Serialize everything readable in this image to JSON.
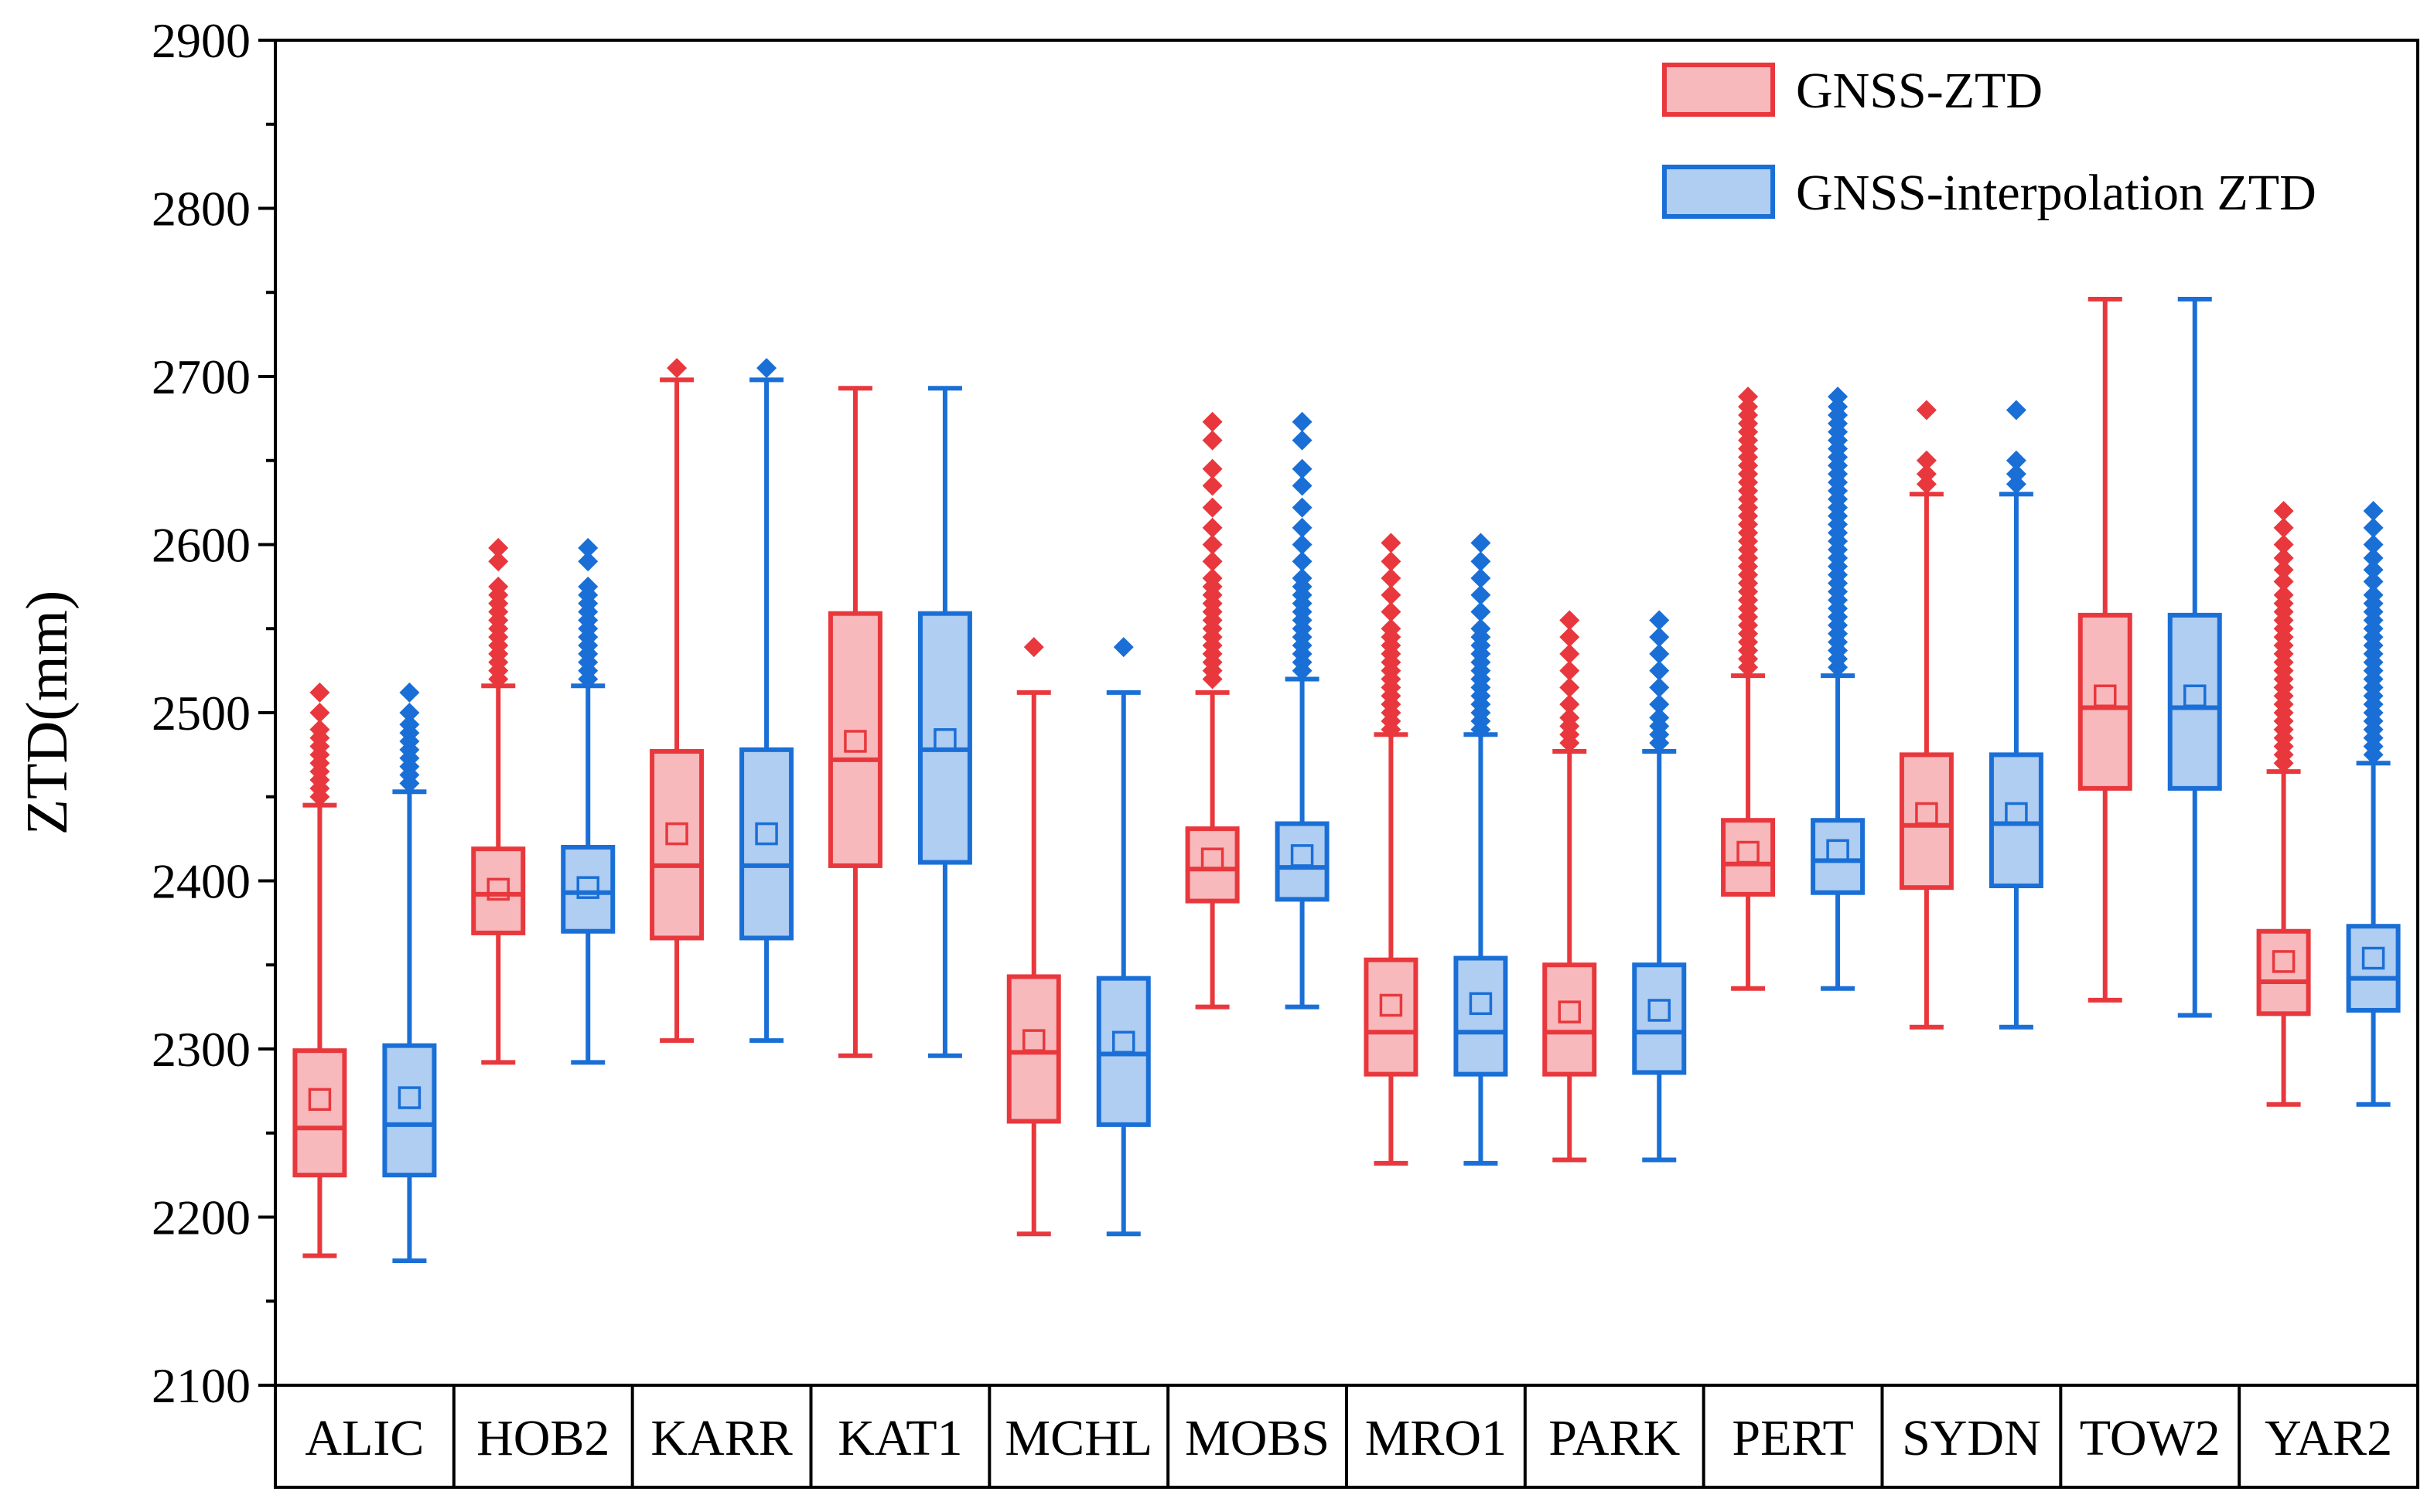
{
  "chart_data": {
    "type": "boxplot",
    "title": "",
    "xlabel": "",
    "ylabel": "ZTD(mm)",
    "ylim": [
      2100,
      2900
    ],
    "yticks": [
      2100,
      2200,
      2300,
      2400,
      2500,
      2600,
      2700,
      2800,
      2900
    ],
    "legend_position": "top-right",
    "categories": [
      "ALIC",
      "HOB2",
      "KARR",
      "KAT1",
      "MCHL",
      "MOBS",
      "MRO1",
      "PARK",
      "PERT",
      "SYDN",
      "TOW2",
      "YAR2"
    ],
    "series": [
      {
        "name": "GNSS-ZTD",
        "color": "#e8383d",
        "fill": "#f7b9bc",
        "boxes": [
          {
            "min": 2177,
            "q1": 2225,
            "median": 2253,
            "q3": 2299,
            "max": 2445,
            "mean": 2270,
            "outliers": [
              2450,
              2455,
              2460,
              2465,
              2470,
              2475,
              2480,
              2485,
              2490,
              2500,
              2512
            ]
          },
          {
            "min": 2292,
            "q1": 2369,
            "median": 2392,
            "q3": 2419,
            "max": 2516,
            "mean": 2395,
            "outliers": [
              2520,
              2525,
              2530,
              2535,
              2540,
              2545,
              2550,
              2555,
              2560,
              2565,
              2570,
              2575,
              2590,
              2598
            ]
          },
          {
            "min": 2305,
            "q1": 2366,
            "median": 2409,
            "q3": 2477,
            "max": 2698,
            "mean": 2428,
            "outliers": [
              2705
            ]
          },
          {
            "min": 2296,
            "q1": 2409,
            "median": 2472,
            "q3": 2559,
            "max": 2693,
            "mean": 2483,
            "outliers": []
          },
          {
            "min": 2190,
            "q1": 2257,
            "median": 2298,
            "q3": 2343,
            "max": 2512,
            "mean": 2305,
            "outliers": [
              2539
            ]
          },
          {
            "min": 2325,
            "q1": 2388,
            "median": 2407,
            "q3": 2431,
            "max": 2512,
            "mean": 2413,
            "outliers": [
              2520,
              2525,
              2530,
              2535,
              2540,
              2545,
              2550,
              2555,
              2560,
              2565,
              2570,
              2575,
              2580,
              2590,
              2600,
              2610,
              2622,
              2635,
              2645,
              2662,
              2673
            ]
          },
          {
            "min": 2232,
            "q1": 2285,
            "median": 2310,
            "q3": 2353,
            "max": 2487,
            "mean": 2326,
            "outliers": [
              2490,
              2495,
              2500,
              2505,
              2510,
              2515,
              2520,
              2525,
              2530,
              2535,
              2540,
              2545,
              2550,
              2560,
              2570,
              2580,
              2590,
              2601
            ]
          },
          {
            "min": 2234,
            "q1": 2285,
            "median": 2310,
            "q3": 2350,
            "max": 2477,
            "mean": 2322,
            "outliers": [
              2482,
              2487,
              2492,
              2497,
              2505,
              2515,
              2525,
              2535,
              2545,
              2555
            ]
          },
          {
            "min": 2336,
            "q1": 2392,
            "median": 2410,
            "q3": 2436,
            "max": 2522,
            "mean": 2417,
            "outliers": [
              2527,
              2532,
              2537,
              2542,
              2547,
              2552,
              2557,
              2562,
              2567,
              2572,
              2577,
              2582,
              2587,
              2592,
              2597,
              2602,
              2607,
              2612,
              2617,
              2622,
              2627,
              2632,
              2637,
              2642,
              2647,
              2652,
              2657,
              2662,
              2667,
              2672,
              2677,
              2682,
              2688
            ]
          },
          {
            "min": 2313,
            "q1": 2396,
            "median": 2433,
            "q3": 2475,
            "max": 2630,
            "mean": 2440,
            "outliers": [
              2636,
              2642,
              2650,
              2680
            ]
          },
          {
            "min": 2329,
            "q1": 2455,
            "median": 2503,
            "q3": 2558,
            "max": 2746,
            "mean": 2510,
            "outliers": []
          },
          {
            "min": 2267,
            "q1": 2321,
            "median": 2340,
            "q3": 2370,
            "max": 2465,
            "mean": 2352,
            "outliers": [
              2470,
              2475,
              2480,
              2485,
              2490,
              2495,
              2500,
              2505,
              2510,
              2515,
              2520,
              2525,
              2530,
              2535,
              2540,
              2545,
              2550,
              2555,
              2560,
              2565,
              2570,
              2578,
              2585,
              2592,
              2600,
              2610,
              2620
            ]
          }
        ]
      },
      {
        "name": "GNSS-interpolation ZTD",
        "color": "#1a6fd6",
        "fill": "#b0cdf2",
        "boxes": [
          {
            "min": 2174,
            "q1": 2225,
            "median": 2255,
            "q3": 2302,
            "max": 2453,
            "mean": 2271,
            "outliers": [
              2458,
              2463,
              2468,
              2473,
              2478,
              2483,
              2488,
              2493,
              2500,
              2512
            ]
          },
          {
            "min": 2292,
            "q1": 2370,
            "median": 2393,
            "q3": 2420,
            "max": 2516,
            "mean": 2396,
            "outliers": [
              2520,
              2525,
              2530,
              2535,
              2540,
              2545,
              2550,
              2555,
              2560,
              2565,
              2570,
              2575,
              2590,
              2598
            ]
          },
          {
            "min": 2305,
            "q1": 2366,
            "median": 2409,
            "q3": 2478,
            "max": 2698,
            "mean": 2428,
            "outliers": [
              2705
            ]
          },
          {
            "min": 2296,
            "q1": 2411,
            "median": 2478,
            "q3": 2559,
            "max": 2693,
            "mean": 2484,
            "outliers": []
          },
          {
            "min": 2190,
            "q1": 2255,
            "median": 2297,
            "q3": 2342,
            "max": 2512,
            "mean": 2304,
            "outliers": [
              2539
            ]
          },
          {
            "min": 2325,
            "q1": 2389,
            "median": 2408,
            "q3": 2434,
            "max": 2520,
            "mean": 2415,
            "outliers": [
              2525,
              2530,
              2535,
              2540,
              2545,
              2550,
              2555,
              2560,
              2565,
              2570,
              2575,
              2580,
              2590,
              2600,
              2610,
              2622,
              2635,
              2645,
              2662,
              2673
            ]
          },
          {
            "min": 2232,
            "q1": 2285,
            "median": 2310,
            "q3": 2354,
            "max": 2487,
            "mean": 2327,
            "outliers": [
              2490,
              2495,
              2500,
              2505,
              2510,
              2515,
              2520,
              2525,
              2530,
              2535,
              2540,
              2545,
              2550,
              2560,
              2570,
              2580,
              2590,
              2601
            ]
          },
          {
            "min": 2234,
            "q1": 2286,
            "median": 2310,
            "q3": 2350,
            "max": 2477,
            "mean": 2323,
            "outliers": [
              2482,
              2487,
              2492,
              2497,
              2505,
              2515,
              2525,
              2535,
              2545,
              2555
            ]
          },
          {
            "min": 2336,
            "q1": 2393,
            "median": 2412,
            "q3": 2436,
            "max": 2522,
            "mean": 2418,
            "outliers": [
              2527,
              2532,
              2537,
              2542,
              2547,
              2552,
              2557,
              2562,
              2567,
              2572,
              2577,
              2582,
              2587,
              2592,
              2597,
              2602,
              2607,
              2612,
              2617,
              2622,
              2627,
              2632,
              2637,
              2642,
              2647,
              2652,
              2657,
              2662,
              2667,
              2672,
              2677,
              2682,
              2688
            ]
          },
          {
            "min": 2313,
            "q1": 2397,
            "median": 2434,
            "q3": 2475,
            "max": 2630,
            "mean": 2440,
            "outliers": [
              2636,
              2642,
              2650,
              2680
            ]
          },
          {
            "min": 2320,
            "q1": 2455,
            "median": 2503,
            "q3": 2558,
            "max": 2746,
            "mean": 2510,
            "outliers": []
          },
          {
            "min": 2267,
            "q1": 2323,
            "median": 2342,
            "q3": 2373,
            "max": 2470,
            "mean": 2354,
            "outliers": [
              2475,
              2480,
              2485,
              2490,
              2495,
              2500,
              2505,
              2510,
              2515,
              2520,
              2525,
              2530,
              2535,
              2540,
              2545,
              2550,
              2555,
              2560,
              2565,
              2570,
              2578,
              2585,
              2592,
              2600,
              2610,
              2620
            ]
          }
        ]
      }
    ]
  }
}
